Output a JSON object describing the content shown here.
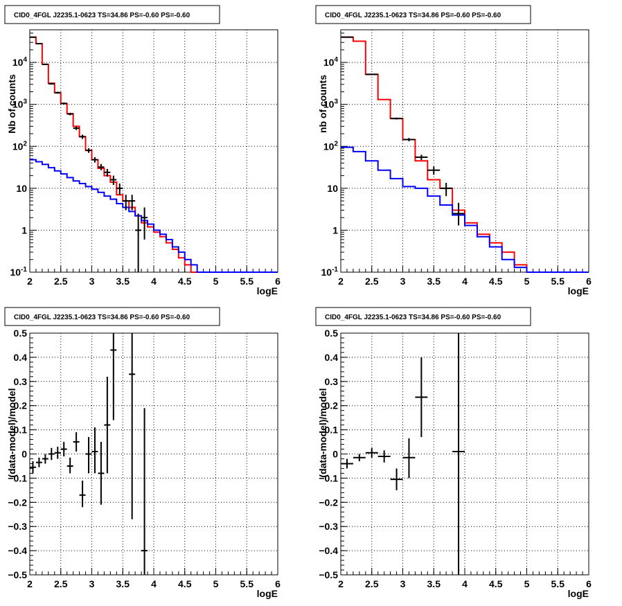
{
  "chart_data": [
    {
      "type": "line",
      "title": "CID0_4FGL J2235.1-0623 TS=34.86 PS=-0.60 PS=-0.60",
      "xlabel": "logE",
      "ylabel": "Nb of counts",
      "xlim": [
        2,
        6
      ],
      "ylim": [
        0.1,
        60000
      ],
      "yscale": "log",
      "grid": true,
      "xticks": [
        "2",
        "2.5",
        "3",
        "3.5",
        "4",
        "4.5",
        "5",
        "5.5",
        "6"
      ],
      "yticks": [
        {
          "v": 0.1,
          "label": "10^-1"
        },
        {
          "v": 1,
          "label": "1"
        },
        {
          "v": 10,
          "label": "10"
        },
        {
          "v": 100,
          "label": "10^2"
        },
        {
          "v": 1000,
          "label": "10^3"
        },
        {
          "v": 10000,
          "label": "10^4"
        }
      ],
      "bin_edges": [
        2.0,
        2.1,
        2.2,
        2.3,
        2.4,
        2.5,
        2.6,
        2.7,
        2.8,
        2.9,
        3.0,
        3.1,
        3.2,
        3.3,
        3.4,
        3.5,
        3.6,
        3.7,
        3.8,
        3.9,
        4.0,
        4.1,
        4.2,
        4.3,
        4.4,
        4.5,
        4.6,
        4.7,
        4.8,
        4.9,
        5.0,
        5.1,
        5.2,
        5.3,
        5.4,
        5.5,
        5.6,
        5.7,
        5.8,
        5.9,
        6.0
      ],
      "series": [
        {
          "color": "#ff0000",
          "values": [
            40000,
            28000,
            9000,
            3200,
            1900,
            1050,
            600,
            300,
            170,
            80,
            48,
            30,
            20,
            14,
            7,
            5,
            3.5,
            2.2,
            1.5,
            1.2,
            0.9,
            0.7,
            0.5,
            0.35,
            0.22,
            0.15,
            0.1,
            0.1,
            0.1,
            0.1,
            0.1,
            0.1,
            0.1,
            0.1,
            0.1,
            0.1,
            0.1,
            0.1,
            0.1,
            0.1
          ]
        },
        {
          "color": "#0000ff",
          "values": [
            48,
            43,
            37,
            31,
            26,
            22,
            18,
            15,
            13,
            11,
            9.5,
            8,
            6.5,
            5.5,
            4.3,
            3.5,
            2.8,
            2.2,
            1.7,
            1.4,
            1.0,
            0.8,
            0.6,
            0.4,
            0.3,
            0.2,
            0.15,
            0.1,
            0.1,
            0.1,
            0.1,
            0.1,
            0.1,
            0.1,
            0.1,
            0.1,
            0.1,
            0.1,
            0.1,
            0.1
          ]
        }
      ],
      "data_points": [
        {
          "x": 2.05,
          "y": 40000,
          "ylo": 39000,
          "yhi": 41000
        },
        {
          "x": 2.15,
          "y": 28000,
          "ylo": 27200,
          "yhi": 28800
        },
        {
          "x": 2.25,
          "y": 9000,
          "ylo": 8700,
          "yhi": 9300
        },
        {
          "x": 2.35,
          "y": 3100,
          "ylo": 2950,
          "yhi": 3250
        },
        {
          "x": 2.45,
          "y": 1900,
          "ylo": 1800,
          "yhi": 2000
        },
        {
          "x": 2.55,
          "y": 1050,
          "ylo": 990,
          "yhi": 1110
        },
        {
          "x": 2.65,
          "y": 590,
          "ylo": 550,
          "yhi": 630
        },
        {
          "x": 2.75,
          "y": 270,
          "ylo": 245,
          "yhi": 295
        },
        {
          "x": 2.85,
          "y": 170,
          "ylo": 150,
          "yhi": 190
        },
        {
          "x": 2.95,
          "y": 80,
          "ylo": 70,
          "yhi": 90
        },
        {
          "x": 3.05,
          "y": 48,
          "ylo": 41,
          "yhi": 55
        },
        {
          "x": 3.15,
          "y": 32,
          "ylo": 27,
          "yhi": 38
        },
        {
          "x": 3.25,
          "y": 24,
          "ylo": 19,
          "yhi": 29
        },
        {
          "x": 3.35,
          "y": 16,
          "ylo": 12,
          "yhi": 20
        },
        {
          "x": 3.45,
          "y": 10,
          "ylo": 7,
          "yhi": 13
        },
        {
          "x": 3.55,
          "y": 5,
          "ylo": 3,
          "yhi": 7
        },
        {
          "x": 3.65,
          "y": 5,
          "ylo": 3,
          "yhi": 7
        },
        {
          "x": 3.75,
          "y": 1,
          "ylo": 0.1,
          "yhi": 2.5
        },
        {
          "x": 3.85,
          "y": 2,
          "ylo": 0.6,
          "yhi": 3.5
        }
      ]
    },
    {
      "type": "line",
      "title": "CID0_4FGL J2235.1-0623 TS=34.86 PS=-0.60 PS=-0.60",
      "xlabel": "logE",
      "ylabel": "nb of counts",
      "xlim": [
        2,
        6
      ],
      "ylim": [
        0.1,
        60000
      ],
      "yscale": "log",
      "grid": true,
      "xticks": [
        "2",
        "2.5",
        "3",
        "3.5",
        "4",
        "4.5",
        "5",
        "5.5",
        "6"
      ],
      "yticks": [
        {
          "v": 0.1,
          "label": "10^-1"
        },
        {
          "v": 1,
          "label": "1"
        },
        {
          "v": 10,
          "label": "10"
        },
        {
          "v": 100,
          "label": "10^2"
        },
        {
          "v": 1000,
          "label": "10^3"
        },
        {
          "v": 10000,
          "label": "10^4"
        }
      ],
      "bin_edges": [
        2.0,
        2.2,
        2.4,
        2.6,
        2.8,
        3.0,
        3.2,
        3.4,
        3.6,
        3.8,
        4.0,
        4.2,
        4.4,
        4.6,
        4.8,
        5.0,
        5.2,
        5.4,
        5.6,
        5.8,
        6.0
      ],
      "series": [
        {
          "color": "#ff0000",
          "values": [
            40000,
            32000,
            5200,
            1300,
            460,
            145,
            45,
            16,
            10,
            3,
            1.5,
            0.8,
            0.5,
            0.3,
            0.15,
            0.1,
            0.1,
            0.1,
            0.1,
            0.1
          ]
        },
        {
          "color": "#0000ff",
          "values": [
            95,
            75,
            45,
            27,
            17,
            11,
            10,
            6.5,
            4,
            2.3,
            1.3,
            0.7,
            0.4,
            0.2,
            0.13,
            0.1,
            0.1,
            0.1,
            0.1,
            0.1
          ]
        }
      ],
      "data_points": [
        {
          "x": 2.1,
          "y": 40000,
          "ylo": 39600,
          "yhi": 40400
        },
        {
          "x": 2.5,
          "y": 5200,
          "ylo": 5050,
          "yhi": 5350
        },
        {
          "x": 2.9,
          "y": 460,
          "ylo": 435,
          "yhi": 485
        },
        {
          "x": 3.1,
          "y": 145,
          "ylo": 132,
          "yhi": 158
        },
        {
          "x": 3.3,
          "y": 55,
          "ylo": 47,
          "yhi": 63
        },
        {
          "x": 3.5,
          "y": 27,
          "ylo": 21,
          "yhi": 33
        },
        {
          "x": 3.7,
          "y": 10,
          "ylo": 6.5,
          "yhi": 13.5
        },
        {
          "x": 3.9,
          "y": 2.5,
          "ylo": 1.3,
          "yhi": 4.5
        }
      ]
    },
    {
      "type": "scatter",
      "title": "CID0_4FGL J2235.1-0623 TS=34.86 PS=-0.60 PS=-0.60",
      "xlabel": "logE",
      "ylabel": "(data-model)/model",
      "xlim": [
        2,
        6
      ],
      "ylim": [
        -0.5,
        0.5
      ],
      "grid": true,
      "xticks": [
        "2",
        "2.5",
        "3",
        "3.5",
        "4",
        "4.5",
        "5",
        "5.5",
        "6"
      ],
      "yticks": [
        "-0.5",
        "-0.4",
        "-0.3",
        "-0.2",
        "-0.1",
        "0",
        "0.1",
        "0.2",
        "0.3",
        "0.4",
        "0.5"
      ],
      "xerr": 0.05,
      "data_points": [
        {
          "x": 2.05,
          "y": -0.055,
          "ylo": -0.08,
          "yhi": -0.03
        },
        {
          "x": 2.15,
          "y": -0.035,
          "ylo": -0.055,
          "yhi": -0.015
        },
        {
          "x": 2.25,
          "y": -0.02,
          "ylo": -0.04,
          "yhi": 0.0
        },
        {
          "x": 2.35,
          "y": 0.0,
          "ylo": -0.025,
          "yhi": 0.025
        },
        {
          "x": 2.45,
          "y": 0.005,
          "ylo": -0.02,
          "yhi": 0.03
        },
        {
          "x": 2.55,
          "y": 0.02,
          "ylo": -0.01,
          "yhi": 0.05
        },
        {
          "x": 2.65,
          "y": -0.05,
          "ylo": -0.08,
          "yhi": -0.015
        },
        {
          "x": 2.75,
          "y": 0.05,
          "ylo": 0.01,
          "yhi": 0.09
        },
        {
          "x": 2.85,
          "y": -0.17,
          "ylo": -0.22,
          "yhi": -0.11
        },
        {
          "x": 2.95,
          "y": 0.0,
          "ylo": -0.08,
          "yhi": 0.07
        },
        {
          "x": 3.05,
          "y": 0.01,
          "ylo": -0.08,
          "yhi": 0.11
        },
        {
          "x": 3.15,
          "y": -0.08,
          "ylo": -0.21,
          "yhi": 0.05
        },
        {
          "x": 3.25,
          "y": 0.12,
          "ylo": -0.08,
          "yhi": 0.32
        },
        {
          "x": 3.35,
          "y": 0.43,
          "ylo": 0.14,
          "yhi": 0.5
        },
        {
          "x": 3.65,
          "y": 0.33,
          "ylo": -0.27,
          "yhi": 0.5
        },
        {
          "x": 3.85,
          "y": -0.4,
          "ylo": -0.5,
          "yhi": 0.19
        }
      ]
    },
    {
      "type": "scatter",
      "title": "CID0_4FGL J2235.1-0623 TS=34.86 PS=-0.60 PS=-0.60",
      "xlabel": "logE",
      "ylabel": "(data-model)/model",
      "xlim": [
        2,
        6
      ],
      "ylim": [
        -0.5,
        0.5
      ],
      "grid": true,
      "xticks": [
        "2",
        "2.5",
        "3",
        "3.5",
        "4",
        "4.5",
        "5",
        "5.5",
        "6"
      ],
      "yticks": [
        "-0.5",
        "-0.4",
        "-0.3",
        "-0.2",
        "-0.1",
        "0",
        "0.1",
        "0.2",
        "0.3",
        "0.4",
        "0.5"
      ],
      "xerr": 0.1,
      "data_points": [
        {
          "x": 2.1,
          "y": -0.04,
          "ylo": -0.06,
          "yhi": -0.02
        },
        {
          "x": 2.3,
          "y": -0.015,
          "ylo": -0.03,
          "yhi": 0.0
        },
        {
          "x": 2.5,
          "y": 0.005,
          "ylo": -0.015,
          "yhi": 0.025
        },
        {
          "x": 2.7,
          "y": -0.01,
          "ylo": -0.035,
          "yhi": 0.015
        },
        {
          "x": 2.9,
          "y": -0.105,
          "ylo": -0.15,
          "yhi": -0.06
        },
        {
          "x": 3.1,
          "y": -0.015,
          "ylo": -0.1,
          "yhi": 0.065
        },
        {
          "x": 3.3,
          "y": 0.235,
          "ylo": 0.07,
          "yhi": 0.4
        },
        {
          "x": 3.9,
          "y": 0.01,
          "ylo": -0.5,
          "yhi": 0.5
        }
      ]
    }
  ]
}
